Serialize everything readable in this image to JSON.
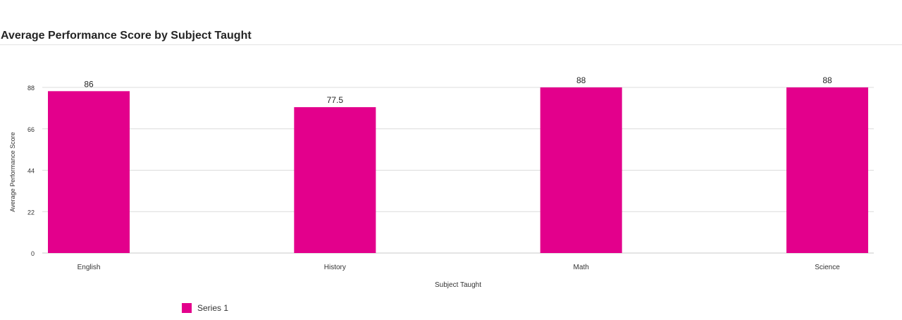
{
  "chart_data": {
    "type": "bar",
    "title": "Average Performance Score by Subject Taught",
    "xlabel": "Subject Taught",
    "ylabel": "Average Performance Score",
    "categories": [
      "English",
      "History",
      "Math",
      "Science"
    ],
    "series": [
      {
        "name": "Series 1",
        "values": [
          86,
          77.5,
          88,
          88
        ],
        "color": "#e3008c"
      }
    ],
    "data_labels": [
      "86",
      "77.5",
      "88",
      "88"
    ],
    "yticks": [
      0,
      22,
      44,
      66,
      88
    ],
    "ylim": [
      0,
      88
    ],
    "grid": true,
    "legend_position": "bottom-left"
  }
}
